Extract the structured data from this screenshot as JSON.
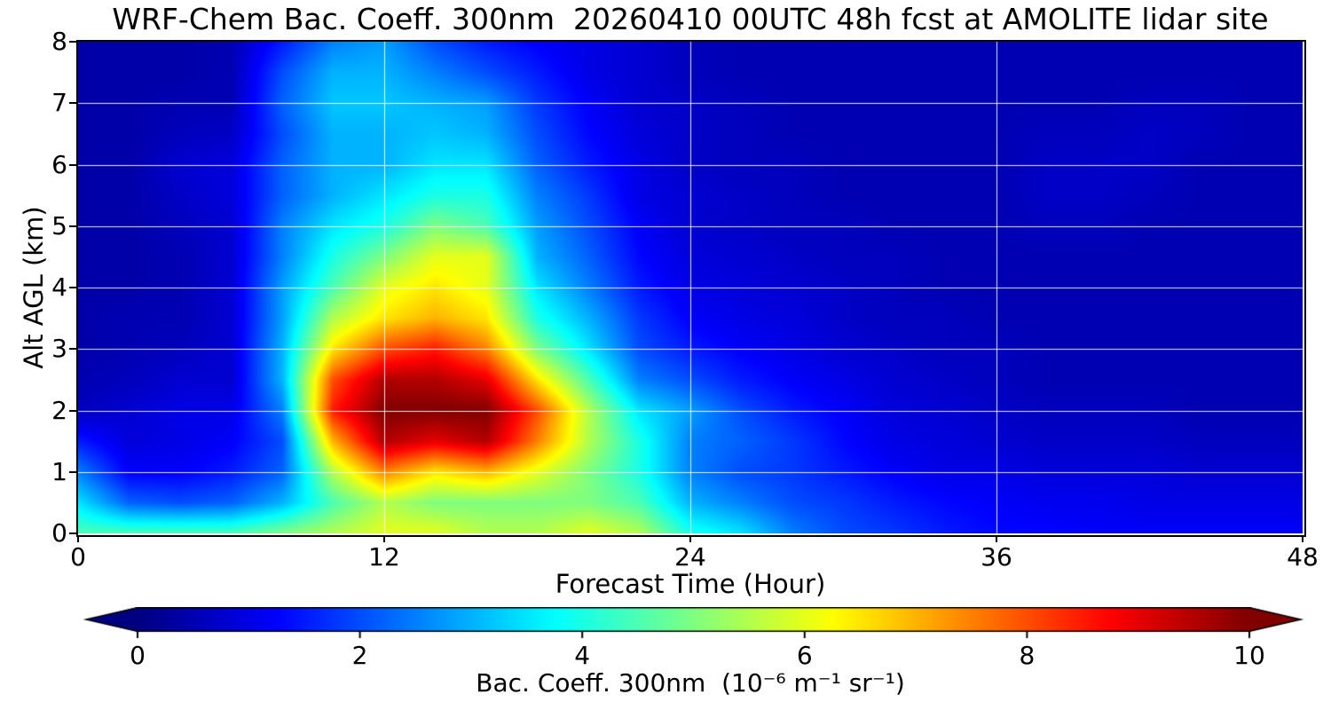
{
  "chart_data": {
    "type": "heatmap",
    "title": "WRF-Chem Bac. Coeff. 300nm  20260410 00UTC 48h fcst at AMOLITE lidar site",
    "xlabel": "Forecast Time (Hour)",
    "ylabel": "Alt AGL (km)",
    "colorbar_label": "Bac. Coeff. 300nm  (10⁻⁶ m⁻¹ sr⁻¹)",
    "colormap": "jet",
    "grid_on": true,
    "grid_color": "#ffffff",
    "frame_color": "#000000",
    "background_color": "#ffffff",
    "xlim": [
      0,
      48
    ],
    "ylim": [
      0,
      8
    ],
    "zlim": [
      0,
      10
    ],
    "x_ticks": [
      0,
      12,
      24,
      36,
      48
    ],
    "y_ticks": [
      0,
      1,
      2,
      3,
      4,
      5,
      6,
      7,
      8
    ],
    "colorbar_ticks": [
      0,
      2,
      4,
      6,
      8,
      10
    ],
    "colorbar_extend": "both",
    "x": [
      0,
      2,
      4,
      6,
      8,
      10,
      12,
      14,
      16,
      18,
      20,
      22,
      24,
      26,
      28,
      30,
      32,
      34,
      36,
      38,
      40,
      42,
      44,
      46,
      48
    ],
    "y": [
      0,
      0.5,
      1,
      1.5,
      2,
      2.5,
      3,
      3.5,
      4,
      4.5,
      5,
      5.5,
      6,
      6.5,
      7,
      7.5,
      8
    ],
    "values": [
      [
        4.5,
        4.5,
        4.5,
        4.5,
        5.0,
        5.5,
        6.0,
        6.0,
        5.5,
        5.5,
        6.0,
        5.5,
        4.0,
        3.5,
        2.5,
        2.0,
        1.8,
        1.5,
        1.3,
        1.3,
        1.2,
        1.2,
        1.2,
        1.2,
        1.2
      ],
      [
        3.5,
        2.2,
        2.0,
        2.2,
        3.0,
        4.5,
        5.5,
        5.0,
        5.0,
        5.0,
        5.0,
        4.5,
        3.0,
        2.5,
        2.0,
        1.8,
        1.5,
        1.3,
        1.2,
        1.1,
        1.1,
        1.0,
        1.0,
        1.0,
        1.0
      ],
      [
        2.5,
        1.2,
        1.2,
        1.5,
        2.2,
        5.5,
        7.5,
        6.5,
        7.0,
        6.0,
        5.0,
        4.0,
        2.5,
        2.0,
        1.8,
        1.5,
        1.2,
        1.0,
        1.0,
        0.9,
        0.9,
        0.9,
        0.8,
        0.8,
        0.8
      ],
      [
        1.5,
        0.9,
        1.0,
        1.2,
        2.0,
        7.0,
        9.5,
        9.0,
        9.5,
        7.5,
        5.5,
        4.0,
        2.5,
        2.2,
        1.8,
        1.3,
        1.0,
        0.9,
        0.8,
        0.7,
        0.7,
        0.7,
        0.6,
        0.6,
        0.6
      ],
      [
        0.6,
        0.8,
        1.0,
        1.0,
        2.5,
        8.5,
        10,
        10,
        10,
        8.0,
        5.5,
        3.5,
        2.8,
        2.0,
        1.5,
        1.2,
        0.9,
        0.8,
        0.7,
        0.6,
        0.6,
        0.6,
        0.5,
        0.5,
        0.5
      ],
      [
        0.5,
        0.6,
        0.8,
        0.8,
        3.0,
        8.0,
        9.5,
        9.5,
        9.0,
        6.5,
        4.5,
        2.5,
        2.0,
        1.5,
        1.2,
        1.0,
        0.8,
        0.7,
        0.6,
        0.5,
        0.5,
        0.5,
        0.5,
        0.5,
        0.5
      ],
      [
        0.4,
        0.5,
        0.6,
        0.8,
        3.0,
        6.5,
        8.0,
        8.5,
        7.5,
        5.0,
        3.5,
        2.0,
        1.5,
        1.2,
        1.0,
        0.8,
        0.7,
        0.6,
        0.6,
        0.5,
        0.5,
        0.5,
        0.5,
        0.5,
        0.5
      ],
      [
        0.4,
        0.5,
        0.5,
        0.8,
        2.8,
        5.5,
        6.5,
        7.0,
        6.5,
        4.0,
        3.0,
        1.8,
        1.2,
        1.0,
        0.9,
        0.7,
        0.6,
        0.6,
        0.5,
        0.5,
        0.5,
        0.5,
        0.5,
        0.5,
        0.5
      ],
      [
        0.4,
        0.4,
        0.5,
        0.8,
        2.8,
        4.5,
        6.0,
        6.5,
        6.0,
        3.5,
        2.5,
        1.5,
        1.0,
        0.9,
        0.8,
        0.7,
        0.6,
        0.5,
        0.5,
        0.5,
        0.5,
        0.5,
        0.5,
        0.5,
        0.5
      ],
      [
        0.4,
        0.4,
        0.5,
        0.8,
        2.5,
        4.0,
        5.0,
        6.0,
        6.0,
        3.0,
        2.2,
        1.3,
        0.9,
        0.8,
        0.7,
        0.6,
        0.6,
        0.5,
        0.5,
        0.5,
        0.5,
        0.5,
        0.5,
        0.5,
        0.5
      ],
      [
        0.4,
        0.4,
        0.6,
        0.8,
        2.5,
        3.5,
        4.0,
        5.0,
        4.5,
        2.8,
        2.0,
        1.2,
        0.8,
        0.7,
        0.6,
        0.6,
        0.5,
        0.5,
        0.5,
        0.6,
        0.6,
        0.5,
        0.5,
        0.5,
        0.5
      ],
      [
        0.4,
        0.4,
        0.7,
        0.9,
        2.2,
        3.0,
        3.5,
        4.0,
        4.0,
        2.5,
        1.8,
        1.0,
        0.8,
        0.7,
        0.6,
        0.5,
        0.5,
        0.5,
        0.5,
        0.7,
        0.7,
        0.6,
        0.5,
        0.5,
        0.5
      ],
      [
        0.4,
        0.4,
        0.8,
        0.9,
        2.2,
        3.0,
        3.0,
        3.5,
        3.5,
        2.2,
        1.5,
        1.0,
        0.7,
        0.6,
        0.6,
        0.5,
        0.5,
        0.5,
        0.5,
        0.7,
        0.7,
        0.7,
        0.5,
        0.5,
        0.5
      ],
      [
        0.4,
        0.4,
        0.6,
        0.7,
        2.0,
        3.0,
        3.0,
        3.2,
        3.0,
        2.0,
        1.3,
        0.9,
        0.7,
        0.6,
        0.5,
        0.5,
        0.5,
        0.5,
        0.5,
        0.6,
        0.6,
        0.7,
        0.6,
        0.5,
        0.5
      ],
      [
        0.4,
        0.4,
        0.5,
        0.5,
        2.2,
        3.2,
        3.2,
        3.0,
        2.8,
        1.8,
        1.2,
        0.8,
        0.7,
        0.6,
        0.5,
        0.5,
        0.5,
        0.5,
        0.5,
        0.5,
        0.5,
        0.6,
        0.6,
        0.5,
        0.5
      ],
      [
        0.4,
        0.4,
        0.4,
        0.5,
        2.0,
        3.0,
        3.0,
        2.5,
        2.0,
        1.5,
        1.0,
        0.8,
        0.6,
        0.5,
        0.5,
        0.5,
        0.5,
        0.5,
        0.5,
        0.5,
        0.5,
        0.5,
        0.5,
        0.5,
        0.5
      ],
      [
        0.4,
        0.4,
        0.4,
        0.5,
        1.5,
        2.5,
        2.8,
        2.0,
        1.5,
        1.2,
        1.0,
        0.8,
        0.6,
        0.5,
        0.5,
        0.5,
        0.5,
        0.5,
        0.5,
        0.5,
        0.5,
        0.5,
        0.5,
        0.5,
        0.5
      ]
    ]
  }
}
